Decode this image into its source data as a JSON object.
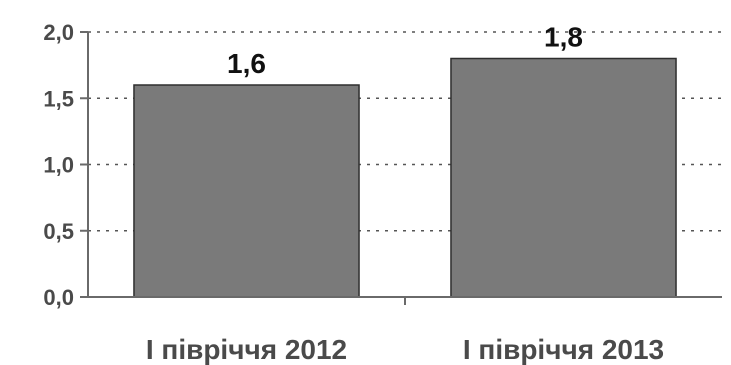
{
  "chart_data": {
    "type": "bar",
    "categories": [
      "І півріччя 2012",
      "І півріччя 2013"
    ],
    "values": [
      1.6,
      1.8
    ],
    "value_labels": [
      "1,6",
      "1,8"
    ],
    "y_ticks": [
      "0,0",
      "0,5",
      "1,0",
      "1,5",
      "2,0"
    ],
    "y_tick_values": [
      0,
      0.5,
      1.0,
      1.5,
      2.0
    ],
    "ylim": [
      0,
      2.0
    ],
    "grid": true,
    "title": "",
    "xlabel": "",
    "ylabel": "",
    "bar_color": "#7a7a7a"
  }
}
